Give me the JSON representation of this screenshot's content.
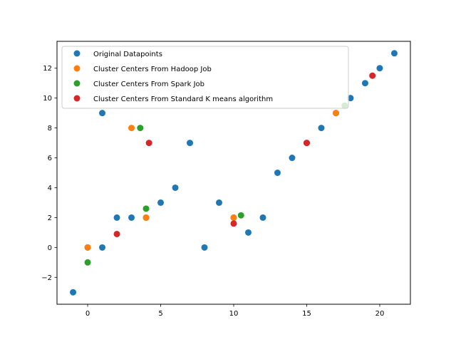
{
  "chart_data": {
    "type": "scatter",
    "title": "",
    "xlabel": "",
    "ylabel": "",
    "xlim": [
      -2.1,
      22.1
    ],
    "ylim": [
      -3.8,
      13.8
    ],
    "xticks": [
      0,
      5,
      10,
      15,
      20
    ],
    "yticks": [
      -2,
      0,
      2,
      4,
      6,
      8,
      10,
      12
    ],
    "xtick_labels": [
      "0",
      "5",
      "10",
      "15",
      "20"
    ],
    "ytick_labels": [
      "−2",
      "0",
      "2",
      "4",
      "6",
      "8",
      "10",
      "12"
    ],
    "grid": false,
    "legend_position": "top-left",
    "series": [
      {
        "name": "Original Datapoints",
        "color": "#1f77b4",
        "points": [
          [
            -1,
            -3
          ],
          [
            0,
            0
          ],
          [
            1,
            0
          ],
          [
            1,
            9
          ],
          [
            2,
            2
          ],
          [
            3,
            2
          ],
          [
            4,
            2
          ],
          [
            5,
            3
          ],
          [
            6,
            4
          ],
          [
            7,
            7
          ],
          [
            8,
            0
          ],
          [
            9,
            3
          ],
          [
            10,
            2
          ],
          [
            11,
            1
          ],
          [
            12,
            2
          ],
          [
            13,
            5
          ],
          [
            14,
            6
          ],
          [
            15,
            7
          ],
          [
            16,
            8
          ],
          [
            17,
            9
          ],
          [
            18,
            10
          ],
          [
            19,
            11
          ],
          [
            20,
            12
          ],
          [
            21,
            13
          ]
        ]
      },
      {
        "name": "Cluster Centers From Hadoop Job",
        "color": "#ff7f0e",
        "points": [
          [
            0,
            0
          ],
          [
            3,
            8
          ],
          [
            4,
            2
          ],
          [
            10,
            2
          ],
          [
            17,
            9
          ]
        ]
      },
      {
        "name": "Cluster Centers From Spark Job",
        "color": "#2ca02c",
        "points": [
          [
            0,
            -1
          ],
          [
            3.6,
            8
          ],
          [
            4,
            2.6
          ],
          [
            10.5,
            2.15
          ],
          [
            17.6,
            9.5
          ]
        ]
      },
      {
        "name": "Cluster Centers From Standard K means algorithm",
        "color": "#d62728",
        "points": [
          [
            2,
            0.9
          ],
          [
            4.2,
            7
          ],
          [
            10,
            1.6
          ],
          [
            15,
            7
          ],
          [
            19.5,
            11.5
          ]
        ]
      }
    ]
  }
}
